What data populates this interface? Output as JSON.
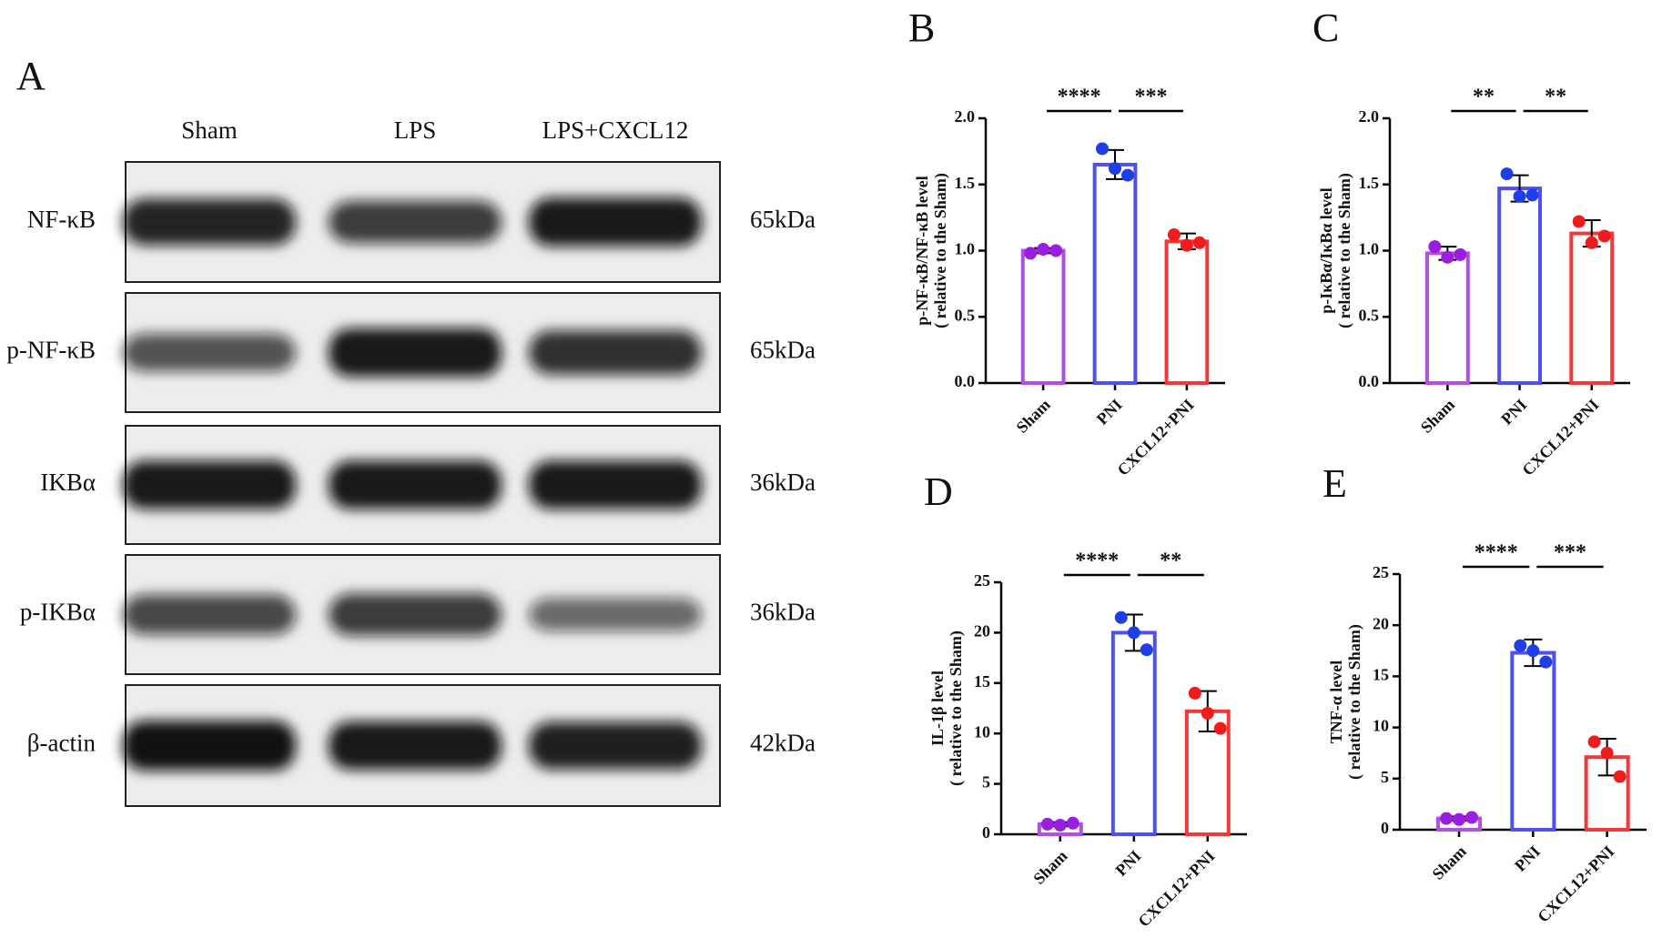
{
  "blot": {
    "panel": "A",
    "lanes": [
      "Sham",
      "LPS",
      "LPS+CXCL12"
    ],
    "rows": [
      {
        "label": "NF-κB",
        "kda": "65kDa"
      },
      {
        "label": "p-NF-κB",
        "kda": "65kDa"
      },
      {
        "label": "IKBα",
        "kda": "36kDa"
      },
      {
        "label": "p-IKBα",
        "kda": "36kDa"
      },
      {
        "label": "β-actin",
        "kda": "42kDa"
      }
    ]
  },
  "chart_data": [
    {
      "type": "bar",
      "panel": "B",
      "ylabel": [
        "p-NF-κB/NF-κB level",
        "( relative to the Sham)"
      ],
      "categories": [
        "Sham",
        "PNI",
        "CXCL12+PNI"
      ],
      "values": [
        1.0,
        1.65,
        1.07
      ],
      "errors": [
        0.02,
        0.11,
        0.06
      ],
      "points": [
        [
          0.98,
          1.01,
          1.0
        ],
        [
          1.77,
          1.62,
          1.57
        ],
        [
          1.12,
          1.04,
          1.06
        ]
      ],
      "colors": [
        "#b04fe0",
        "#5050ee",
        "#f03a3a"
      ],
      "dot_colors": [
        "#9a1ee0",
        "#1f3fe6",
        "#f01c1c"
      ],
      "annotations": [
        "****",
        "***"
      ],
      "ylim": [
        0,
        2.0
      ],
      "yticks": [
        {
          "value": 0,
          "label": "0.0"
        },
        {
          "value": 0.5,
          "label": "0.5"
        },
        {
          "value": 1,
          "label": "1.0"
        },
        {
          "value": 1.5,
          "label": "1.5"
        },
        {
          "value": 2,
          "label": "2.0"
        }
      ]
    },
    {
      "type": "bar",
      "panel": "C",
      "ylabel": [
        "p-IκBα/IκBα level",
        "( relative to the Sham)"
      ],
      "categories": [
        "Sham",
        "PNI",
        "CXCL12+PNI"
      ],
      "values": [
        0.98,
        1.47,
        1.13
      ],
      "errors": [
        0.05,
        0.1,
        0.1
      ],
      "points": [
        [
          1.03,
          0.95,
          0.97
        ],
        [
          1.58,
          1.41,
          1.42
        ],
        [
          1.22,
          1.06,
          1.11
        ]
      ],
      "colors": [
        "#b04fe0",
        "#5050ee",
        "#f03a3a"
      ],
      "dot_colors": [
        "#9a1ee0",
        "#1f3fe6",
        "#f01c1c"
      ],
      "annotations": [
        "**",
        "**"
      ],
      "ylim": [
        0,
        2.0
      ],
      "yticks": [
        {
          "value": 0,
          "label": "0.0"
        },
        {
          "value": 0.5,
          "label": "0.5"
        },
        {
          "value": 1,
          "label": "1.0"
        },
        {
          "value": 1.5,
          "label": "1.5"
        },
        {
          "value": 2,
          "label": "2.0"
        }
      ]
    },
    {
      "type": "bar",
      "panel": "D",
      "ylabel": [
        "IL-1β level",
        "( relative to the Sham)"
      ],
      "categories": [
        "Sham",
        "PNI",
        "CXCL12+PNI"
      ],
      "values": [
        1.0,
        20.0,
        12.2
      ],
      "errors": [
        0.2,
        1.8,
        2.0
      ],
      "points": [
        [
          1.0,
          0.9,
          1.1
        ],
        [
          21.5,
          20.0,
          18.3
        ],
        [
          14.0,
          12.0,
          10.5
        ]
      ],
      "colors": [
        "#b04fe0",
        "#5050ee",
        "#f03a3a"
      ],
      "dot_colors": [
        "#9a1ee0",
        "#1f3fe6",
        "#f01c1c"
      ],
      "annotations": [
        "****",
        "**"
      ],
      "ylim": [
        0,
        25
      ],
      "yticks": [
        0,
        5,
        10,
        15,
        20,
        25
      ]
    },
    {
      "type": "bar",
      "panel": "E",
      "ylabel": [
        "TNF-α level",
        "( relative to the Sham)"
      ],
      "categories": [
        "Sham",
        "PNI",
        "CXCL12+PNI"
      ],
      "values": [
        1.1,
        17.3,
        7.1
      ],
      "errors": [
        0.2,
        1.3,
        1.8
      ],
      "points": [
        [
          1.1,
          1.0,
          1.2
        ],
        [
          18.0,
          17.5,
          16.4
        ],
        [
          8.6,
          7.5,
          5.2
        ]
      ],
      "colors": [
        "#b04fe0",
        "#5050ee",
        "#f03a3a"
      ],
      "dot_colors": [
        "#9a1ee0",
        "#1f3fe6",
        "#f01c1c"
      ],
      "annotations": [
        "****",
        "***"
      ],
      "ylim": [
        0,
        25
      ],
      "yticks": [
        0,
        5,
        10,
        15,
        20,
        25
      ]
    }
  ]
}
